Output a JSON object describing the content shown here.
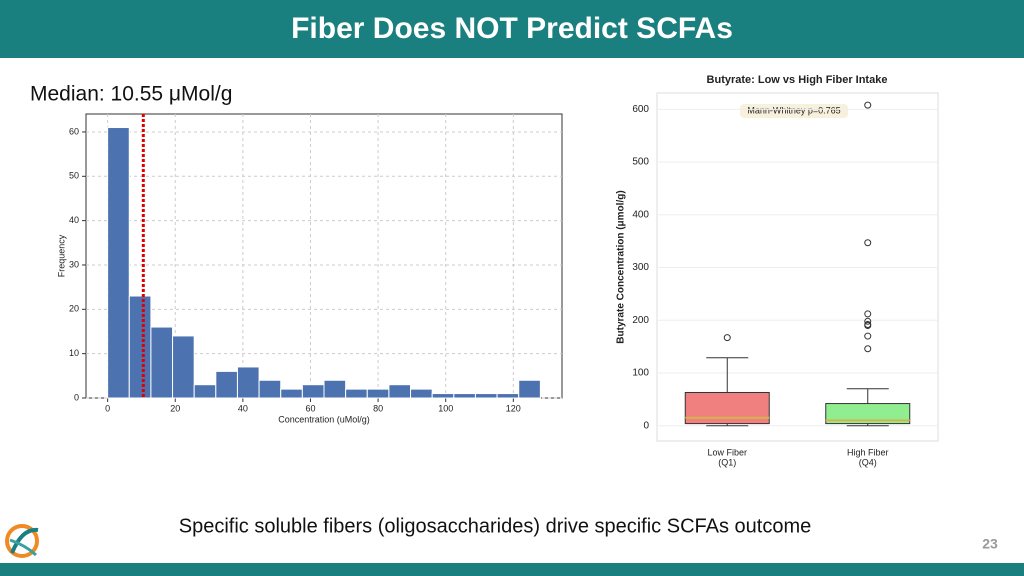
{
  "slide_title": "Fiber Does NOT Predict SCFAs",
  "footer_text": "Specific soluble fibers (oligosaccharides) drive specific SCFAs outcome",
  "page_number": "23",
  "chart_data": [
    {
      "type": "histogram",
      "median_label": "Median: 10.55 μMol/g",
      "median": 10.55,
      "median_color": "#e00000",
      "bins": [
        0,
        6.4,
        12.8,
        19.2,
        25.6,
        32,
        38.4,
        44.8,
        51.2,
        57.6,
        64,
        70.4,
        76.8,
        83.2,
        89.6,
        96,
        102.4,
        108.8,
        115.2,
        121.6,
        128
      ],
      "values": [
        61,
        23,
        16,
        14,
        3,
        6,
        7,
        4,
        2,
        3,
        4,
        2,
        2,
        3,
        2,
        1,
        1,
        1,
        1,
        4
      ],
      "color": "#4c72b0",
      "x_label": "Concentration (uMol/g)",
      "y_label": "Frequency",
      "xlim": [
        -6.4,
        134.4
      ],
      "ylim": [
        0,
        64.05
      ],
      "xticks": [
        0,
        20,
        40,
        60,
        80,
        100,
        120
      ],
      "yticks": [
        0,
        10,
        20,
        30,
        40,
        50,
        60
      ],
      "grid": true
    },
    {
      "type": "box",
      "title": "Butyrate: Low vs High Fiber Intake",
      "y_label": "Butyrate Concentration (μmol/g)",
      "annotation": "Mann-Whitney p=0.765",
      "categories": [
        [
          "Low Fiber",
          "(Q1)"
        ],
        [
          "High Fiber",
          "(Q4)"
        ]
      ],
      "boxes": [
        {
          "whisker_low": 0,
          "q1": 4,
          "median": 15,
          "q3": 63,
          "whisker_high": 129,
          "outliers": [
            167
          ],
          "color": "#f08080"
        },
        {
          "whisker_low": 0,
          "q1": 4,
          "median": 10,
          "q3": 42,
          "whisker_high": 70,
          "outliers": [
            608,
            347,
            212,
            198,
            192,
            190,
            170,
            146
          ],
          "color": "#90ee90"
        }
      ],
      "median_color": "#d4b44a",
      "ylim": [
        -29,
        631
      ],
      "yticks": [
        0,
        100,
        200,
        300,
        400,
        500,
        600
      ],
      "grid": true
    }
  ]
}
